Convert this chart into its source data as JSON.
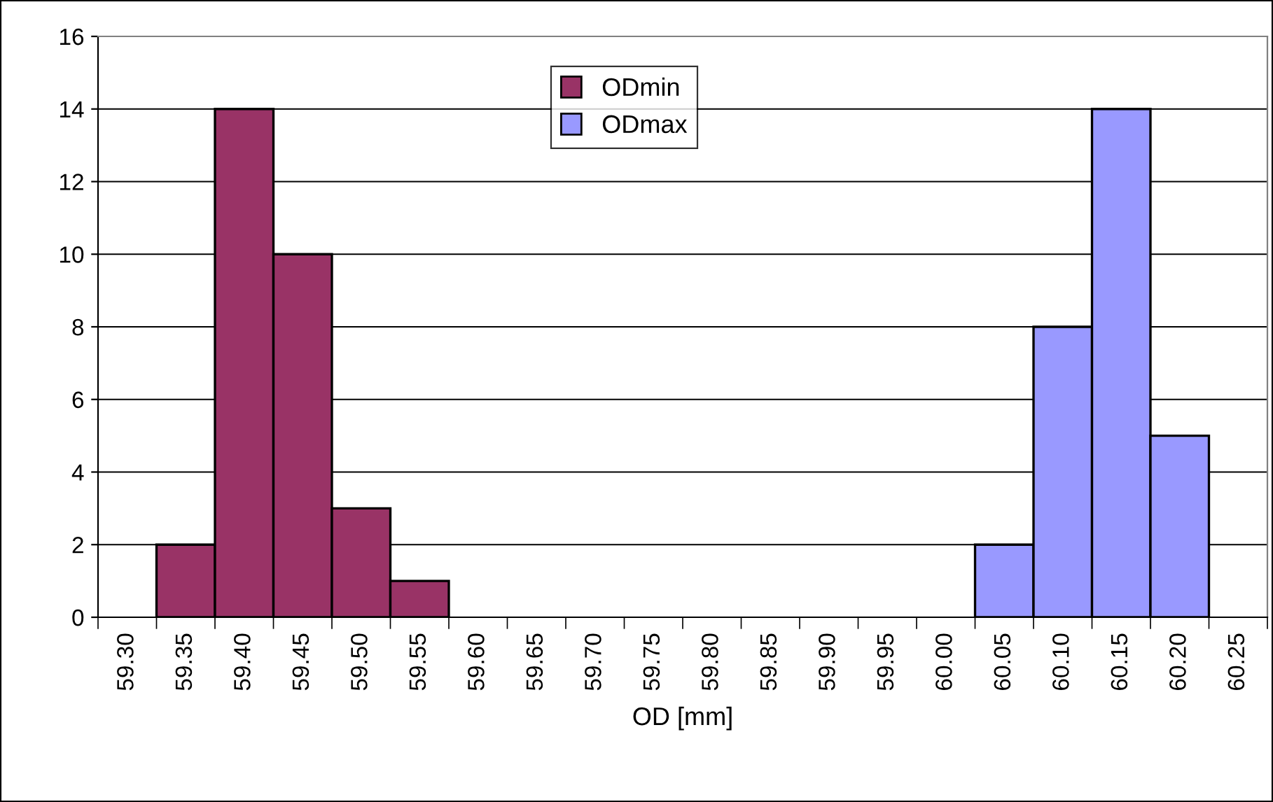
{
  "chart_data": {
    "type": "bar",
    "xlabel": "OD [mm]",
    "categories": [
      "59.30",
      "59.35",
      "59.40",
      "59.45",
      "59.50",
      "59.55",
      "59.60",
      "59.65",
      "59.70",
      "59.75",
      "59.80",
      "59.85",
      "59.90",
      "59.95",
      "60.00",
      "60.05",
      "60.10",
      "60.15",
      "60.20",
      "60.25"
    ],
    "series": [
      {
        "name": "ODmin",
        "color": "#993366",
        "values": [
          null,
          2,
          14,
          10,
          3,
          1,
          null,
          null,
          null,
          null,
          null,
          null,
          null,
          null,
          null,
          null,
          null,
          null,
          null,
          null
        ]
      },
      {
        "name": "ODmax",
        "color": "#9999ff",
        "values": [
          null,
          null,
          null,
          null,
          null,
          null,
          null,
          null,
          null,
          null,
          null,
          null,
          null,
          null,
          null,
          2,
          8,
          14,
          5,
          null
        ]
      }
    ],
    "ylim": [
      0,
      16
    ],
    "yticks": [
      0,
      2,
      4,
      6,
      8,
      10,
      12,
      14,
      16
    ],
    "grid": "y",
    "legend": "top"
  }
}
